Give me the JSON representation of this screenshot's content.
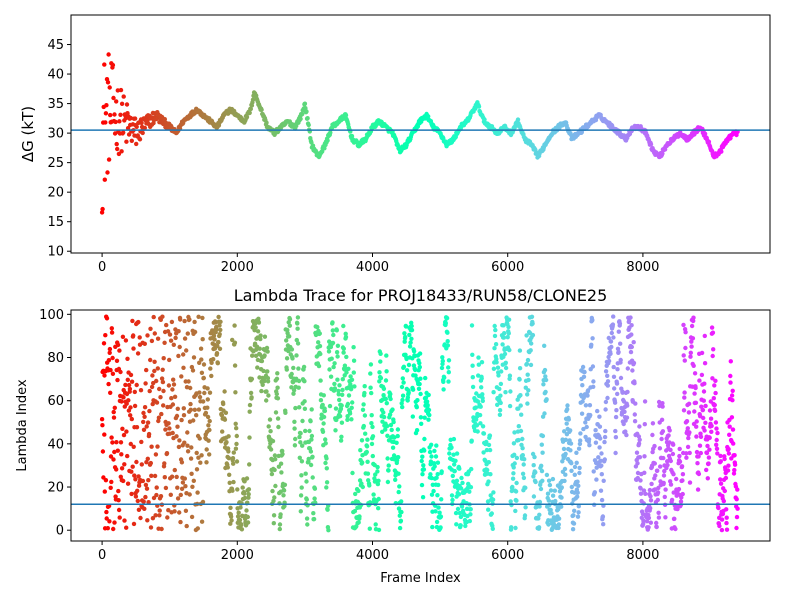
{
  "chart_data": [
    {
      "type": "scatter",
      "title": "",
      "xlabel": "",
      "ylabel": "ΔG (kT)",
      "xlim": [
        -460,
        9880
      ],
      "ylim": [
        9.7,
        50.0
      ],
      "xticks": [
        0,
        2000,
        4000,
        6000,
        8000
      ],
      "xtick_labels": [
        "0",
        "2000",
        "4000",
        "6000",
        "8000"
      ],
      "yticks": [
        10,
        15,
        20,
        25,
        30,
        35,
        40,
        45
      ],
      "ytick_labels": [
        "10",
        "15",
        "20",
        "25",
        "30",
        "35",
        "40",
        "45"
      ],
      "colormap": "rainbow (reversed with frame index: red at start, violet at end)",
      "reference_line": {
        "y": 30.5,
        "color": "#1f77b4"
      },
      "grid": false,
      "legend": "none",
      "trace": {
        "x": [
          0,
          100,
          200,
          300,
          400,
          500,
          600,
          700,
          800,
          900,
          1000,
          1100,
          1200,
          1300,
          1400,
          1500,
          1600,
          1700,
          1800,
          1900,
          2000,
          2100,
          2200,
          2250,
          2350,
          2450,
          2550,
          2650,
          2750,
          2850,
          2950,
          3000,
          3100,
          3200,
          3300,
          3400,
          3500,
          3600,
          3700,
          3800,
          3900,
          4000,
          4100,
          4200,
          4300,
          4400,
          4500,
          4600,
          4700,
          4800,
          4900,
          5000,
          5100,
          5200,
          5300,
          5400,
          5500,
          5550,
          5650,
          5750,
          5850,
          5950,
          6050,
          6150,
          6250,
          6350,
          6450,
          6550,
          6650,
          6750,
          6850,
          6950,
          7050,
          7150,
          7250,
          7350,
          7450,
          7550,
          7650,
          7750,
          7850,
          7950,
          8050,
          8150,
          8250,
          8350,
          8450,
          8550,
          8650,
          8750,
          8850,
          8950,
          9050,
          9150,
          9250,
          9350
        ],
        "y": [
          30,
          34,
          33,
          32,
          31,
          30,
          31,
          32,
          33,
          32,
          31,
          30,
          32,
          33,
          34,
          33,
          32,
          31,
          33,
          34,
          33,
          32,
          34,
          37,
          34,
          31,
          30,
          31,
          32,
          31,
          33,
          35,
          28,
          26,
          28,
          31,
          32,
          33,
          29,
          28,
          29,
          31,
          32,
          31,
          30,
          27,
          28,
          30,
          32,
          33,
          31,
          30,
          28,
          29,
          31,
          32,
          34,
          35,
          32,
          31,
          30,
          31,
          30,
          32,
          29,
          28,
          26,
          28,
          30,
          31,
          32,
          29,
          30,
          31,
          32,
          33,
          32,
          31,
          30,
          29,
          31,
          31,
          30,
          27,
          26,
          28,
          29,
          30,
          29,
          30,
          31,
          29,
          26,
          27,
          29,
          30
        ]
      }
    },
    {
      "type": "scatter",
      "title": "Lambda Trace for PROJ18433/RUN58/CLONE25",
      "xlabel": "Frame Index",
      "ylabel": "Lambda Index",
      "xlim": [
        -460,
        9880
      ],
      "ylim": [
        -5,
        102
      ],
      "xticks": [
        0,
        2000,
        4000,
        6000,
        8000
      ],
      "xtick_labels": [
        "0",
        "2000",
        "4000",
        "6000",
        "8000"
      ],
      "yticks": [
        0,
        20,
        40,
        60,
        80,
        100
      ],
      "ytick_labels": [
        "0",
        "20",
        "40",
        "60",
        "80",
        "100"
      ],
      "colormap": "rainbow (reversed with frame index: red at start, violet at end)",
      "reference_line": {
        "y": 12,
        "color": "#1f77b4"
      },
      "grid": false,
      "legend": "none",
      "point_count_approx": 9400,
      "value_range": [
        0,
        99
      ]
    }
  ],
  "colors": {
    "reference_line": "#1f77b4",
    "axes": "#000000",
    "background": "#ffffff"
  }
}
